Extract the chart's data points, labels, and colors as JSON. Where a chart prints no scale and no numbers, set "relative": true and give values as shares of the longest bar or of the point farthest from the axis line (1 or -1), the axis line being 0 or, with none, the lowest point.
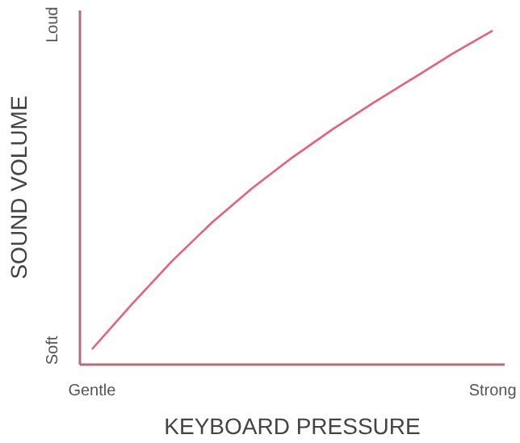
{
  "chart_data": {
    "type": "line",
    "relative": true,
    "xlabel": "KEYBOARD PRESSURE",
    "ylabel": "SOUND VOLUME",
    "annotations": [
      "Soft",
      "Loud"
    ],
    "categories": [
      "Gentle",
      null,
      null,
      null,
      null,
      null,
      null,
      null,
      null,
      null,
      "Strong"
    ],
    "series": [
      {
        "color": "#e8607a",
        "values": [
          0.046,
          0.181,
          0.31,
          0.426,
          0.528,
          0.62,
          0.704,
          0.782,
          0.856,
          0.931,
          1
        ]
      }
    ]
  }
}
